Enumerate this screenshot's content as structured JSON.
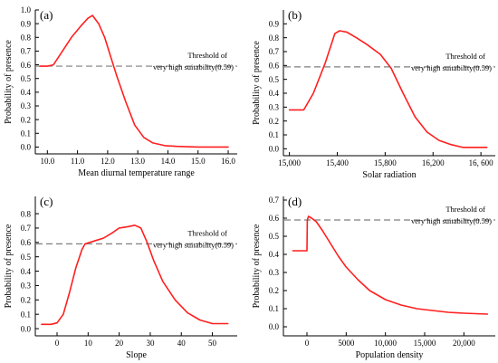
{
  "chart_data": [
    {
      "id": "a",
      "panel_label": "(a)",
      "type": "line",
      "xlabel": "Mean diurnal temperature range",
      "ylabel": "Probability of presence",
      "xlim": [
        9.6,
        16.3
      ],
      "ylim": [
        -0.05,
        1.0
      ],
      "xticks": [
        10.0,
        11.0,
        12.0,
        13.0,
        14.0,
        15.0,
        16.0
      ],
      "xtick_labels": [
        "10.0",
        "11.0",
        "12.0",
        "13.0",
        "14.0",
        "15.0",
        "16.0"
      ],
      "yticks": [
        0.0,
        0.1,
        0.2,
        0.3,
        0.4,
        0.5,
        0.6,
        0.7,
        0.8,
        0.9,
        1.0
      ],
      "ytick_labels": [
        "0.0",
        "0.1",
        "0.2",
        "0.3",
        "0.4",
        "0.5",
        "0.6",
        "0.7",
        "0.8",
        "0.9",
        "1.0"
      ],
      "threshold": {
        "value": 0.59,
        "label_line1": "Threshold of",
        "label_line2": "very high suitability(0.59)"
      },
      "series": [
        {
          "color": "#ff1f1f",
          "x": [
            9.75,
            10.0,
            10.2,
            10.5,
            10.8,
            11.1,
            11.35,
            11.5,
            11.7,
            11.9,
            12.1,
            12.3,
            12.6,
            12.9,
            13.2,
            13.5,
            13.9,
            14.3,
            15.0,
            16.0
          ],
          "y": [
            0.59,
            0.59,
            0.6,
            0.7,
            0.8,
            0.88,
            0.94,
            0.96,
            0.9,
            0.8,
            0.66,
            0.52,
            0.33,
            0.16,
            0.07,
            0.03,
            0.01,
            0.005,
            0.0,
            0.0
          ]
        }
      ]
    },
    {
      "id": "b",
      "panel_label": "(b)",
      "type": "line",
      "xlabel": "Solar radiation",
      "ylabel": "Probability of presence",
      "xlim": [
        14950,
        16720
      ],
      "ylim": [
        -0.05,
        1.0
      ],
      "xticks": [
        15000,
        15400,
        15800,
        16200,
        16600
      ],
      "xtick_labels": [
        "15,000",
        "15,400",
        "15,800",
        "16,200",
        "16, 600"
      ],
      "yticks": [
        0.0,
        0.1,
        0.2,
        0.3,
        0.4,
        0.5,
        0.6,
        0.7,
        0.8,
        0.9
      ],
      "ytick_labels": [
        "0.0",
        "0.1",
        "0.2",
        "0.3",
        "0.4",
        "0.5",
        "0.6",
        "0.7",
        "0.8",
        "0.9"
      ],
      "threshold": {
        "value": 0.59,
        "label_line1": "Threshold of",
        "label_line2": "very high suitability(0.59)"
      },
      "series": [
        {
          "color": "#ff1f1f",
          "x": [
            15000,
            15120,
            15200,
            15300,
            15380,
            15420,
            15480,
            15560,
            15650,
            15760,
            15850,
            15950,
            16050,
            16150,
            16250,
            16350,
            16450,
            16550,
            16650
          ],
          "y": [
            0.28,
            0.28,
            0.4,
            0.62,
            0.83,
            0.85,
            0.84,
            0.8,
            0.75,
            0.68,
            0.58,
            0.4,
            0.23,
            0.12,
            0.06,
            0.03,
            0.01,
            0.01,
            0.01
          ]
        }
      ]
    },
    {
      "id": "c",
      "panel_label": "(c)",
      "type": "line",
      "xlabel": "Slope",
      "ylabel": "Probability of presence",
      "xlim": [
        -7,
        58
      ],
      "ylim": [
        -0.05,
        0.92
      ],
      "xticks": [
        0,
        10,
        20,
        30,
        40,
        50
      ],
      "xtick_labels": [
        "0",
        "10",
        "20",
        "30",
        "40",
        "50"
      ],
      "yticks": [
        0.0,
        0.1,
        0.2,
        0.3,
        0.4,
        0.5,
        0.6,
        0.7,
        0.8
      ],
      "ytick_labels": [
        "0.0",
        "0.1",
        "0.2",
        "0.3",
        "0.4",
        "0.5",
        "0.6",
        "0.7",
        "0.8"
      ],
      "threshold": {
        "value": 0.59,
        "label_line1": "Threshold of",
        "label_line2": "very high suitability(0.59)"
      },
      "series": [
        {
          "color": "#ff1f1f",
          "x": [
            -5,
            -2,
            0,
            2,
            4,
            6,
            8,
            9,
            12,
            15,
            18,
            20,
            23,
            25,
            27,
            29,
            31,
            34,
            38,
            42,
            46,
            50,
            55
          ],
          "y": [
            0.03,
            0.03,
            0.04,
            0.1,
            0.25,
            0.42,
            0.55,
            0.59,
            0.61,
            0.63,
            0.67,
            0.7,
            0.71,
            0.72,
            0.7,
            0.6,
            0.48,
            0.33,
            0.2,
            0.11,
            0.06,
            0.035,
            0.035
          ]
        }
      ]
    },
    {
      "id": "d",
      "panel_label": "(d)",
      "type": "line",
      "xlabel": "Population density",
      "ylabel": "Probability of presence",
      "xlim": [
        -3000,
        24000
      ],
      "ylim": [
        -0.05,
        0.72
      ],
      "xticks": [
        0,
        5000,
        10000,
        15000,
        20000
      ],
      "xtick_labels": [
        "0",
        "5000",
        "10,000",
        "15,000",
        "20,000"
      ],
      "yticks": [
        0.0,
        0.1,
        0.2,
        0.3,
        0.4,
        0.5,
        0.6,
        0.7
      ],
      "ytick_labels": [
        "0.0",
        "0.1",
        "0.2",
        "0.3",
        "0.4",
        "0.5",
        "0.6",
        "0.7"
      ],
      "threshold": {
        "value": 0.59,
        "label_line1": "Threshold of",
        "label_line2": "very high suitability(0.59)"
      },
      "series": [
        {
          "color": "#ff1f1f",
          "x": [
            -1800,
            -200,
            0,
            50,
            200,
            600,
            1200,
            2000,
            3000,
            4000,
            5000,
            6500,
            8000,
            10000,
            12000,
            14000,
            16000,
            18000,
            20000,
            23000
          ],
          "y": [
            0.42,
            0.42,
            0.42,
            0.59,
            0.61,
            0.6,
            0.58,
            0.53,
            0.46,
            0.39,
            0.33,
            0.26,
            0.2,
            0.15,
            0.12,
            0.1,
            0.09,
            0.08,
            0.075,
            0.07
          ]
        }
      ]
    }
  ]
}
